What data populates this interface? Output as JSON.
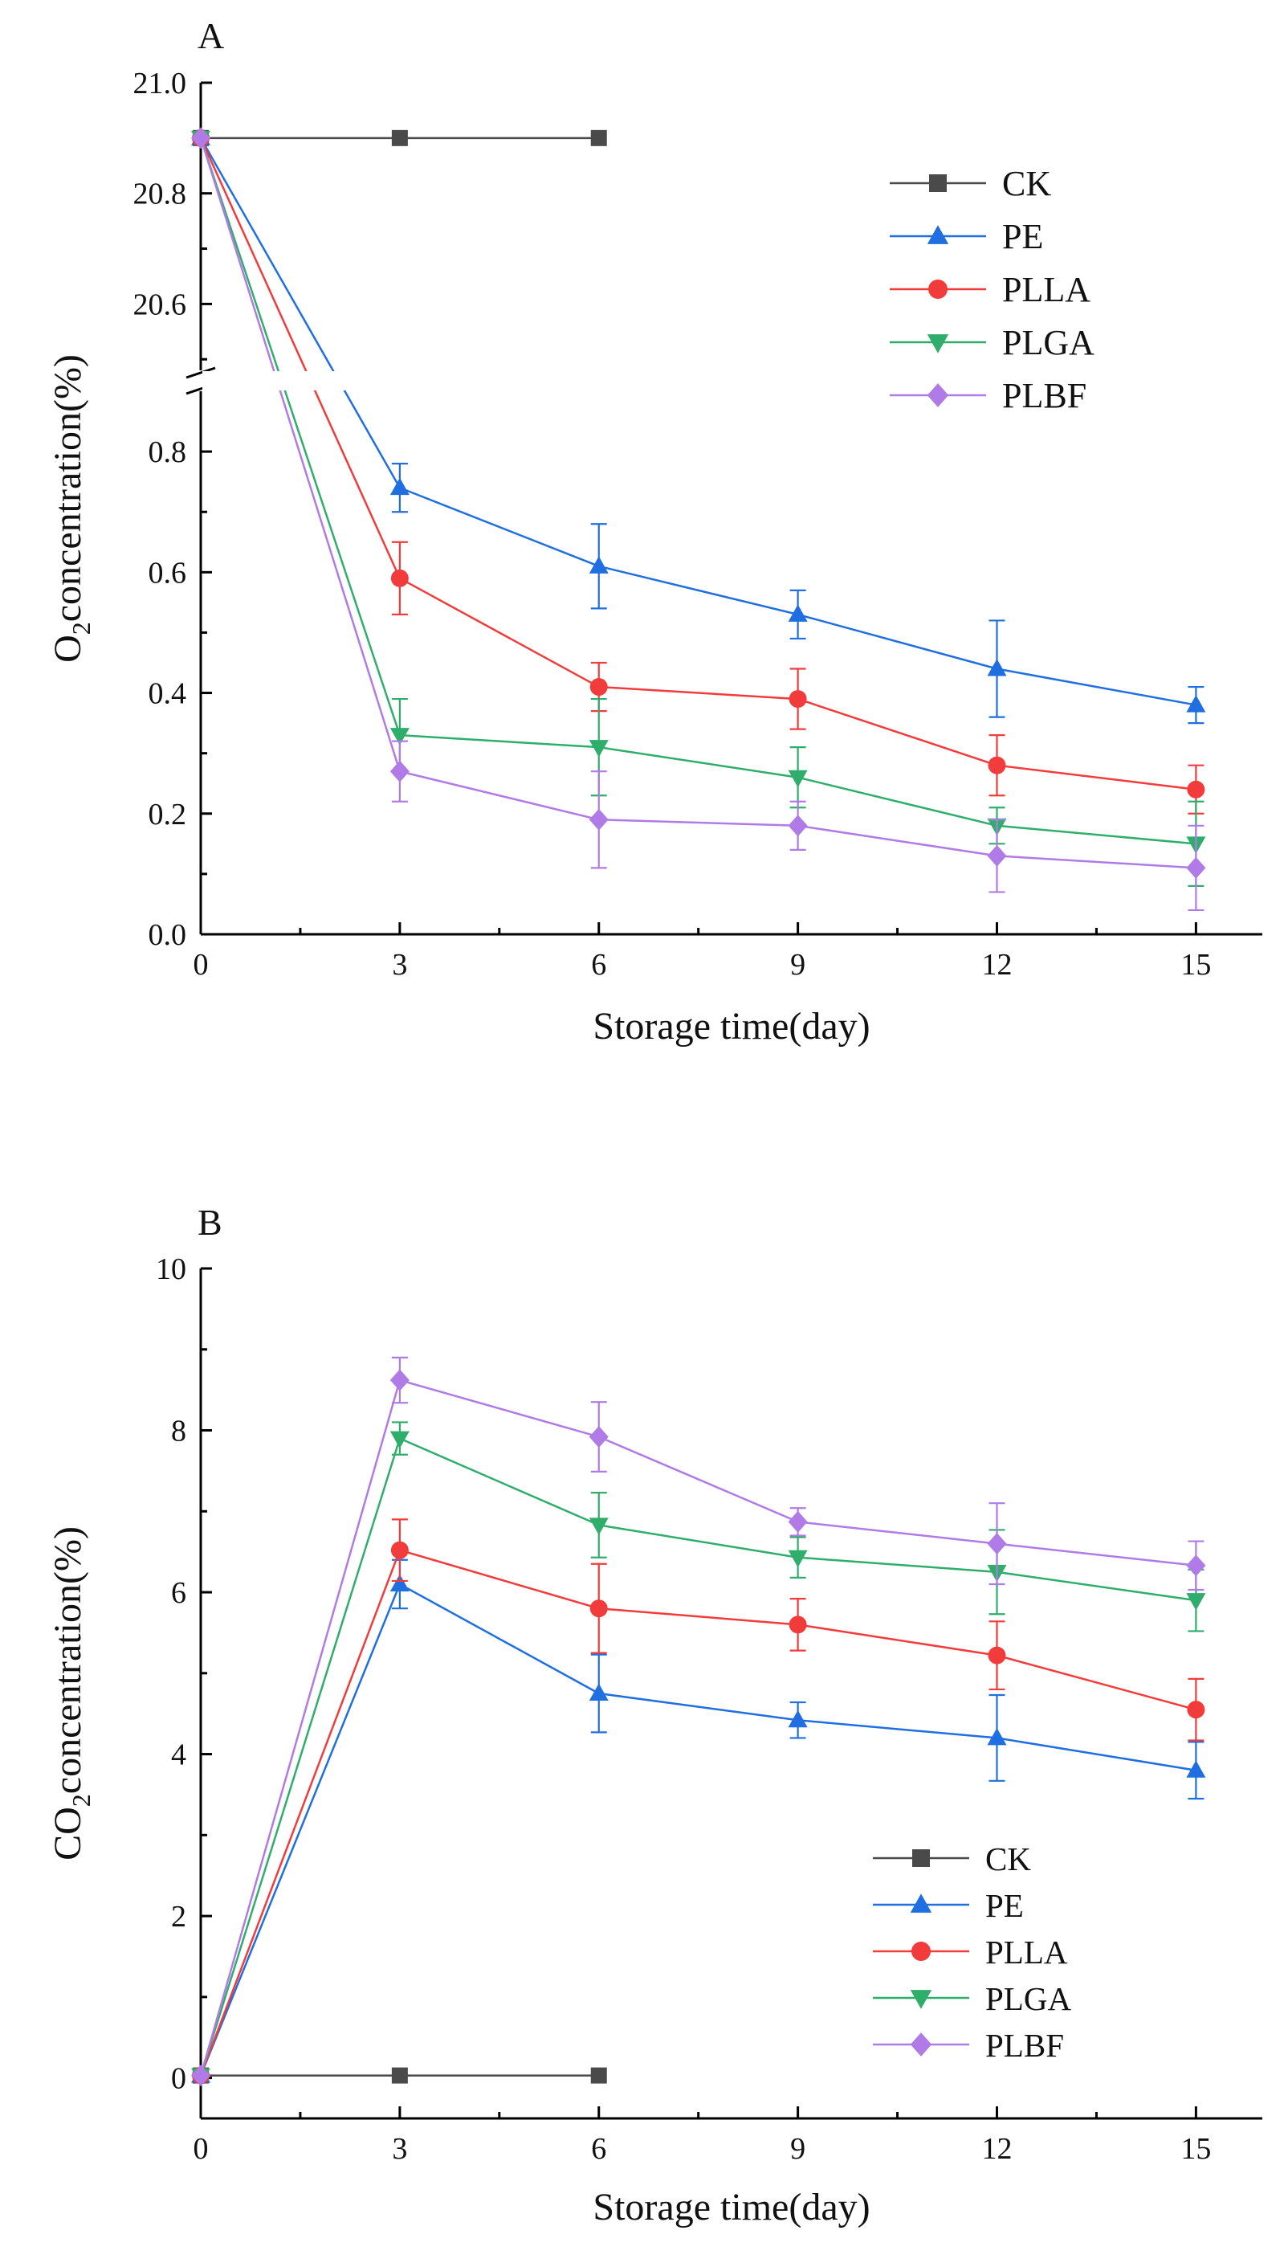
{
  "figure": {
    "colors": {
      "CK": "#4a4a4a",
      "PE": "#1f6fe0",
      "PLLA": "#f23b3b",
      "PLGA": "#2fae6b",
      "PLBF": "#b07be6"
    },
    "markers": {
      "CK": "square",
      "PE": "triangle-up",
      "PLLA": "circle",
      "PLGA": "triangle-down",
      "PLBF": "diamond"
    }
  },
  "chart_data": [
    {
      "panel_label": "A",
      "type": "line",
      "xlabel": "Storage time(day)",
      "ylabel": {
        "main": "O",
        "sub": "2",
        "rest": "concentration(%)"
      },
      "x_ticks": [
        0,
        3,
        6,
        9,
        12,
        15
      ],
      "xlim": [
        0,
        16
      ],
      "y_axis_break": true,
      "y_upper": {
        "ylim": [
          20.48,
          21.0
        ],
        "ticks": [
          "20.6",
          "20.8",
          "21.0"
        ]
      },
      "y_lower": {
        "ylim": [
          0,
          0.9
        ],
        "ticks": [
          "0.0",
          "0.2",
          "0.4",
          "0.6",
          "0.8"
        ]
      },
      "legend_position": "top-right",
      "series": [
        {
          "name": "CK",
          "x": [
            0,
            3,
            6
          ],
          "values": [
            20.9,
            20.9,
            20.9
          ],
          "errors": [
            0,
            0,
            0
          ]
        },
        {
          "name": "PE",
          "x": [
            0,
            3,
            6,
            9,
            12,
            15
          ],
          "values": [
            20.9,
            0.74,
            0.61,
            0.53,
            0.44,
            0.38
          ],
          "errors": [
            0,
            0.04,
            0.07,
            0.04,
            0.08,
            0.03
          ]
        },
        {
          "name": "PLLA",
          "x": [
            0,
            3,
            6,
            9,
            12,
            15
          ],
          "values": [
            20.9,
            0.59,
            0.41,
            0.39,
            0.28,
            0.24
          ],
          "errors": [
            0,
            0.06,
            0.04,
            0.05,
            0.05,
            0.04
          ]
        },
        {
          "name": "PLGA",
          "x": [
            0,
            3,
            6,
            9,
            12,
            15
          ],
          "values": [
            20.9,
            0.33,
            0.31,
            0.26,
            0.18,
            0.15
          ],
          "errors": [
            0,
            0.06,
            0.08,
            0.05,
            0.03,
            0.07
          ]
        },
        {
          "name": "PLBF",
          "x": [
            0,
            3,
            6,
            9,
            12,
            15
          ],
          "values": [
            20.9,
            0.27,
            0.19,
            0.18,
            0.13,
            0.11
          ],
          "errors": [
            0,
            0.05,
            0.08,
            0.04,
            0.06,
            0.07
          ]
        }
      ]
    },
    {
      "panel_label": "B",
      "type": "line",
      "xlabel": "Storage time(day)",
      "ylabel": {
        "main": "CO",
        "sub": "2",
        "rest": "concentration(%)"
      },
      "x_ticks": [
        0,
        3,
        6,
        9,
        12,
        15
      ],
      "xlim": [
        0,
        16
      ],
      "ylim": [
        -0.5,
        10
      ],
      "y_ticks": [
        0,
        2,
        4,
        6,
        8,
        10
      ],
      "legend_position": "bottom-right",
      "series": [
        {
          "name": "CK",
          "x": [
            0,
            3,
            6
          ],
          "values": [
            0.03,
            0.03,
            0.03
          ],
          "errors": [
            0,
            0,
            0
          ]
        },
        {
          "name": "PE",
          "x": [
            0,
            3,
            6,
            9,
            12,
            15
          ],
          "values": [
            0.03,
            6.1,
            4.75,
            4.42,
            4.2,
            3.8
          ],
          "errors": [
            0,
            0.3,
            0.48,
            0.22,
            0.53,
            0.35
          ]
        },
        {
          "name": "PLLA",
          "x": [
            0,
            3,
            6,
            9,
            12,
            15
          ],
          "values": [
            0.03,
            6.52,
            5.8,
            5.6,
            5.22,
            4.55
          ],
          "errors": [
            0,
            0.38,
            0.55,
            0.32,
            0.42,
            0.38
          ]
        },
        {
          "name": "PLGA",
          "x": [
            0,
            3,
            6,
            9,
            12,
            15
          ],
          "values": [
            0.03,
            7.9,
            6.83,
            6.43,
            6.25,
            5.9
          ],
          "errors": [
            0,
            0.2,
            0.4,
            0.25,
            0.52,
            0.38
          ]
        },
        {
          "name": "PLBF",
          "x": [
            0,
            3,
            6,
            9,
            12,
            15
          ],
          "values": [
            0.03,
            8.62,
            7.92,
            6.87,
            6.6,
            6.33
          ],
          "errors": [
            0,
            0.28,
            0.43,
            0.17,
            0.5,
            0.3
          ]
        }
      ]
    }
  ]
}
